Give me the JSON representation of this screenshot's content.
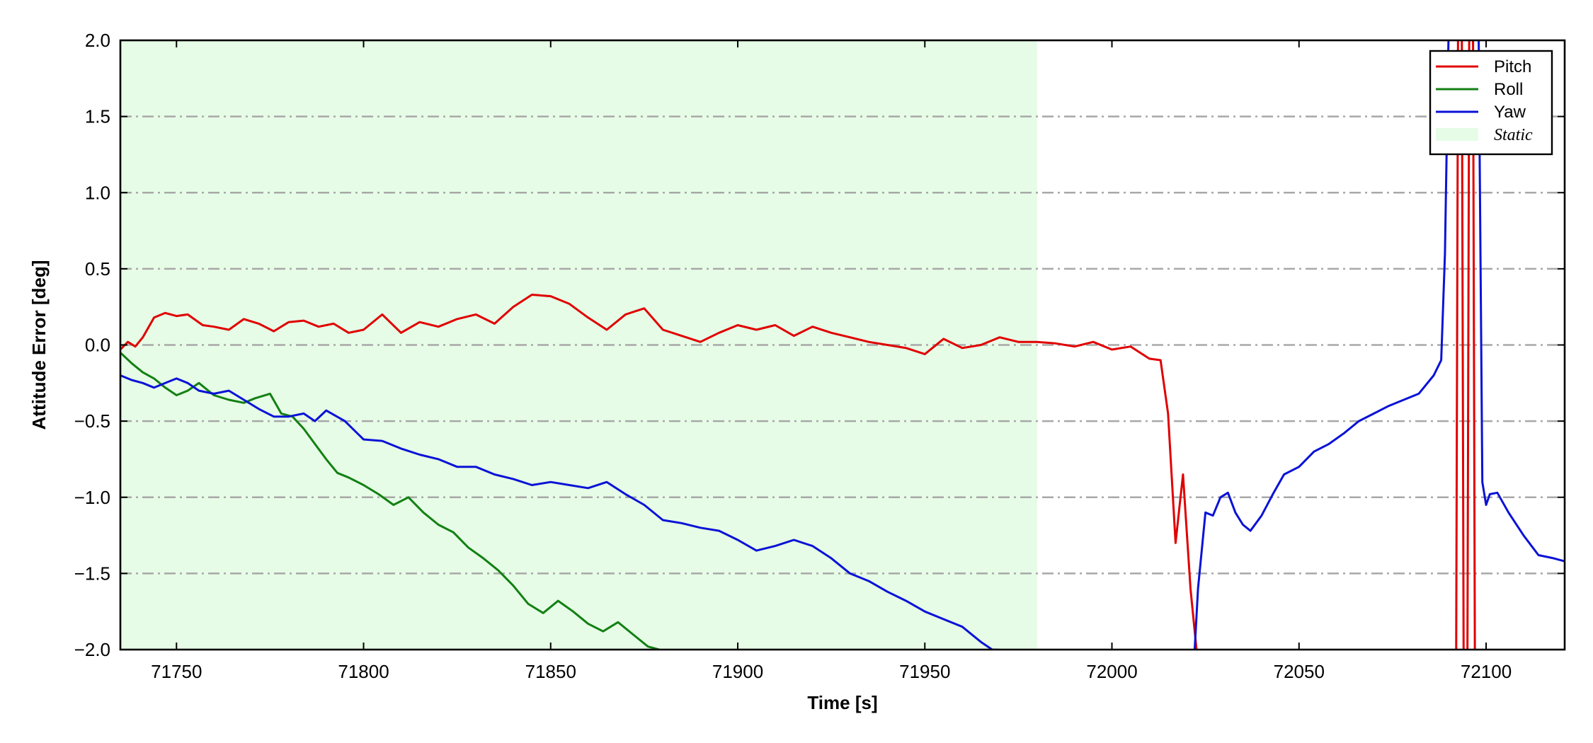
{
  "chart_data": {
    "type": "line",
    "xlabel": "Time [s]",
    "ylabel": "Attitude Error [deg]",
    "xlim": [
      71735,
      72121
    ],
    "ylim": [
      -2.0,
      2.0
    ],
    "xticks": [
      71750,
      71800,
      71850,
      71900,
      71950,
      72000,
      72050,
      72100
    ],
    "yticks": [
      -2.0,
      -1.5,
      -1.0,
      -0.5,
      0.0,
      0.5,
      1.0,
      1.5,
      2.0
    ],
    "ytick_labels": [
      "−2.0",
      "−1.5",
      "−1.0",
      "−0.5",
      "0.0",
      "0.5",
      "1.0",
      "1.5",
      "2.0"
    ],
    "grid": "horizontal dash-dot",
    "legend_position": "top-right",
    "static_region": {
      "label": "Static",
      "x_start": 71735,
      "x_end": 71980,
      "color": "#e6fce6"
    },
    "series": [
      {
        "name": "Pitch",
        "color": "#e00000",
        "x": [
          71735,
          71737,
          71739,
          71741,
          71744,
          71747,
          71750,
          71753,
          71757,
          71760,
          71764,
          71768,
          71772,
          71776,
          71780,
          71784,
          71788,
          71792,
          71796,
          71800,
          71805,
          71810,
          71815,
          71820,
          71825,
          71830,
          71835,
          71840,
          71845,
          71850,
          71855,
          71860,
          71865,
          71870,
          71875,
          71880,
          71885,
          71890,
          71895,
          71900,
          71905,
          71910,
          71915,
          71920,
          71925,
          71930,
          71935,
          71940,
          71945,
          71950,
          71955,
          71960,
          71965,
          71970,
          71975,
          71980,
          71985,
          71990,
          71995,
          72000,
          72005,
          72010,
          72013,
          72015,
          72017,
          72019,
          72021,
          72023,
          72025,
          72092,
          72092.5,
          72093.5,
          72094,
          72095,
          72095.5,
          72096.5,
          72097
        ],
        "y": [
          -0.03,
          0.02,
          -0.01,
          0.05,
          0.18,
          0.21,
          0.19,
          0.2,
          0.13,
          0.12,
          0.1,
          0.17,
          0.14,
          0.09,
          0.15,
          0.16,
          0.12,
          0.14,
          0.08,
          0.1,
          0.2,
          0.08,
          0.15,
          0.12,
          0.17,
          0.2,
          0.14,
          0.25,
          0.33,
          0.32,
          0.27,
          0.18,
          0.1,
          0.2,
          0.24,
          0.1,
          0.06,
          0.02,
          0.08,
          0.13,
          0.1,
          0.13,
          0.06,
          0.12,
          0.08,
          0.05,
          0.02,
          0.0,
          -0.02,
          -0.06,
          0.04,
          -0.02,
          0.0,
          0.05,
          0.02,
          0.02,
          0.01,
          -0.01,
          0.02,
          -0.03,
          -0.01,
          -0.09,
          -0.1,
          -0.45,
          -1.3,
          -0.85,
          -1.6,
          -2.1,
          -2.1,
          -2.1,
          2.1,
          2.1,
          -2.1,
          -2.1,
          2.1,
          2.1,
          -2.1
        ]
      },
      {
        "name": "Roll",
        "color": "#138013",
        "x": [
          71735,
          71738,
          71741,
          71744,
          71747,
          71750,
          71753,
          71756,
          71760,
          71764,
          71768,
          71771,
          71775,
          71778,
          71781,
          71784,
          71787,
          71790,
          71793,
          71796,
          71800,
          71804,
          71808,
          71812,
          71816,
          71820,
          71824,
          71828,
          71832,
          71836,
          71840,
          71844,
          71848,
          71852,
          71856,
          71860,
          71864,
          71868,
          71872,
          71876,
          71879
        ],
        "y": [
          -0.05,
          -0.12,
          -0.18,
          -0.22,
          -0.28,
          -0.33,
          -0.3,
          -0.25,
          -0.33,
          -0.36,
          -0.38,
          -0.35,
          -0.32,
          -0.45,
          -0.47,
          -0.55,
          -0.65,
          -0.75,
          -0.84,
          -0.87,
          -0.92,
          -0.98,
          -1.05,
          -1.0,
          -1.1,
          -1.18,
          -1.23,
          -1.33,
          -1.4,
          -1.48,
          -1.58,
          -1.7,
          -1.76,
          -1.68,
          -1.75,
          -1.83,
          -1.88,
          -1.82,
          -1.9,
          -1.98,
          -2.0
        ]
      },
      {
        "name": "Yaw",
        "color": "#0a12d6",
        "x": [
          71735,
          71738,
          71741,
          71744,
          71747,
          71750,
          71753,
          71756,
          71760,
          71764,
          71768,
          71772,
          71776,
          71780,
          71784,
          71787,
          71790,
          71795,
          71800,
          71805,
          71810,
          71815,
          71820,
          71825,
          71830,
          71835,
          71840,
          71845,
          71850,
          71855,
          71860,
          71865,
          71870,
          71875,
          71880,
          71885,
          71890,
          71895,
          71900,
          71905,
          71910,
          71915,
          71920,
          71925,
          71930,
          71935,
          71940,
          71945,
          71950,
          71955,
          71960,
          71965,
          71968,
          72022,
          72023,
          72025,
          72027,
          72029,
          72031,
          72033,
          72035,
          72037,
          72040,
          72043,
          72046,
          72050,
          72054,
          72058,
          72062,
          72066,
          72070,
          72074,
          72078,
          72082,
          72086,
          72088,
          72089,
          72090,
          72091,
          72098,
          72099,
          72100,
          72101,
          72103,
          72106,
          72110,
          72114,
          72118,
          72121
        ],
        "y": [
          -0.2,
          -0.23,
          -0.25,
          -0.28,
          -0.25,
          -0.22,
          -0.25,
          -0.3,
          -0.32,
          -0.3,
          -0.36,
          -0.42,
          -0.47,
          -0.47,
          -0.45,
          -0.5,
          -0.43,
          -0.5,
          -0.62,
          -0.63,
          -0.68,
          -0.72,
          -0.75,
          -0.8,
          -0.8,
          -0.85,
          -0.88,
          -0.92,
          -0.9,
          -0.92,
          -0.94,
          -0.9,
          -0.98,
          -1.05,
          -1.15,
          -1.17,
          -1.2,
          -1.22,
          -1.28,
          -1.35,
          -1.32,
          -1.28,
          -1.32,
          -1.4,
          -1.5,
          -1.55,
          -1.62,
          -1.68,
          -1.75,
          -1.8,
          -1.85,
          -1.95,
          -2.0,
          -2.05,
          -1.6,
          -1.1,
          -1.12,
          -1.0,
          -0.97,
          -1.1,
          -1.18,
          -1.22,
          -1.12,
          -0.98,
          -0.85,
          -0.8,
          -0.7,
          -0.65,
          -0.58,
          -0.5,
          -0.45,
          -0.4,
          -0.36,
          -0.32,
          -0.2,
          -0.1,
          0.6,
          2.1,
          2.1,
          2.1,
          -0.9,
          -1.05,
          -0.98,
          -0.97,
          -1.1,
          -1.25,
          -1.38,
          -1.4,
          -1.42
        ]
      }
    ]
  }
}
